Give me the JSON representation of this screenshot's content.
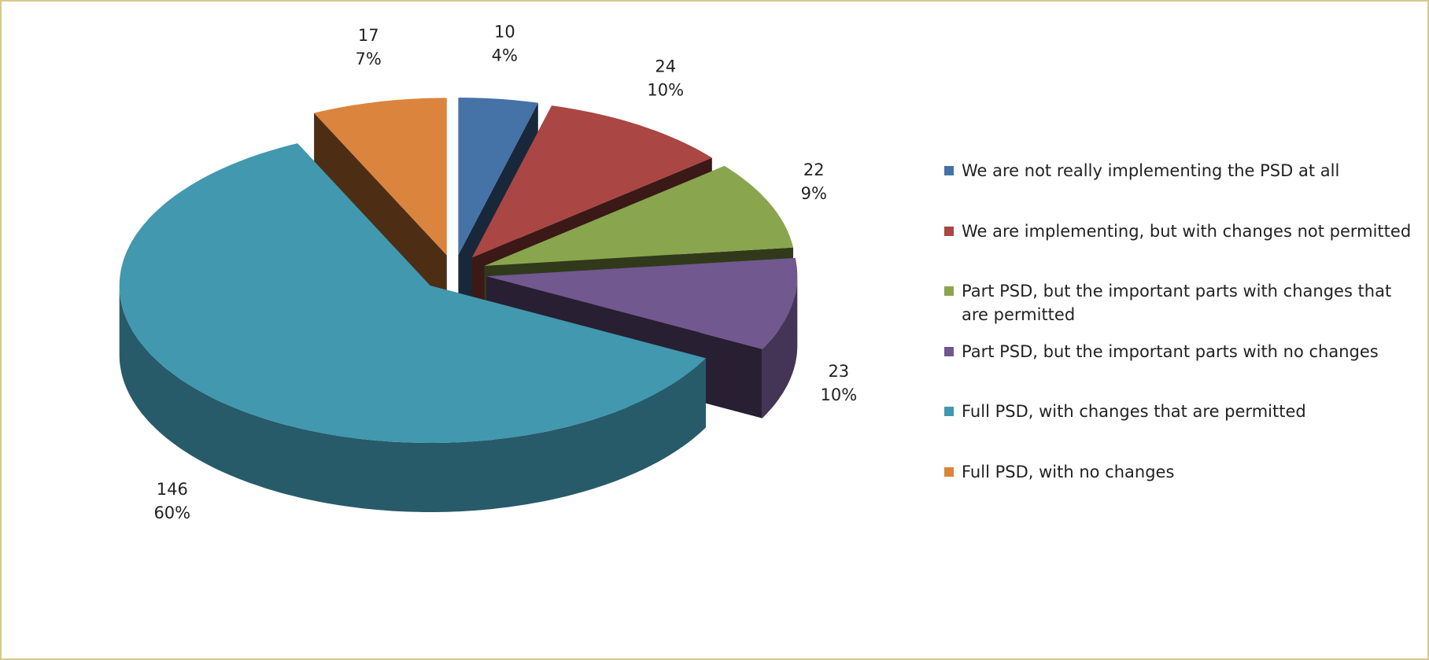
{
  "chart_data": {
    "type": "pie3d",
    "categories": [
      "We are not really implementing the PSD at all",
      "We are implementing, but with changes not permitted",
      "Part PSD, but the important parts with changes that are permitted",
      "Part PSD, but the important parts with no changes",
      "Full PSD, with changes that are permitted",
      "Full PSD, with no changes"
    ],
    "values": [
      10,
      24,
      22,
      23,
      146,
      17
    ],
    "percent_labels": [
      "4%",
      "10%",
      "9%",
      "10%",
      "60%",
      "7%"
    ],
    "colors": [
      "#4572a7",
      "#aa4643",
      "#89a54e",
      "#71588f",
      "#4198af",
      "#db843d"
    ],
    "legend": "right"
  }
}
